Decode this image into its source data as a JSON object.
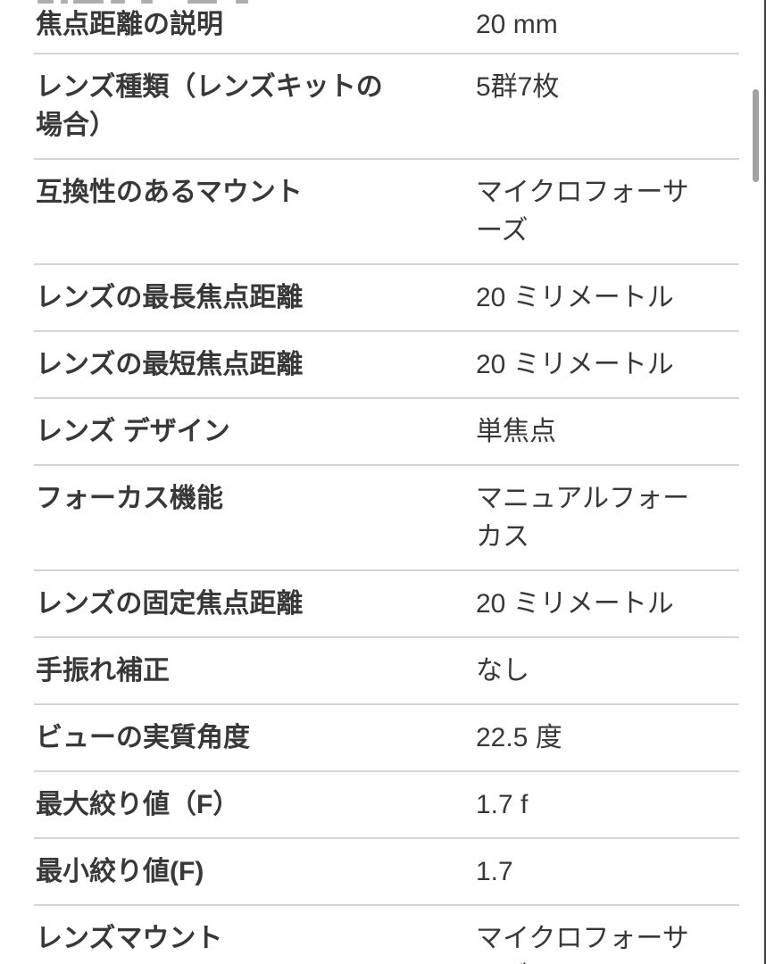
{
  "colors": {
    "label_text": "#383838",
    "value_text": "#383838",
    "divider": "#d4d4d4",
    "scrollbar_thumb": "#a1a1a1",
    "screen_edge": "#3f3f3f",
    "background": "#ffffff"
  },
  "spec_table": {
    "rows": [
      {
        "label": "焦点距離の説明",
        "value": "20 mm"
      },
      {
        "label": "レンズ種類（レンズキットの場合）",
        "value": "5群7枚"
      },
      {
        "label": "互換性のあるマウント",
        "value": "マイクロフォーサーズ"
      },
      {
        "label": "レンズの最長焦点距離",
        "value": "20 ミリメートル"
      },
      {
        "label": "レンズの最短焦点距離",
        "value": "20 ミリメートル"
      },
      {
        "label": "レンズ デザイン",
        "value": "単焦点"
      },
      {
        "label": "フォーカス機能",
        "value": "マニュアルフォーカス"
      },
      {
        "label": "レンズの固定焦点距離",
        "value": "20 ミリメートル"
      },
      {
        "label": "手振れ補正",
        "value": "なし"
      },
      {
        "label": "ビューの実質角度",
        "value": "22.5 度"
      },
      {
        "label": "最大絞り値（F）",
        "value": "1.7 f"
      },
      {
        "label": "最小絞り値(F)",
        "value": "1.7"
      },
      {
        "label": "レンズマウント",
        "value": "マイクロフォーサーズ"
      }
    ]
  }
}
